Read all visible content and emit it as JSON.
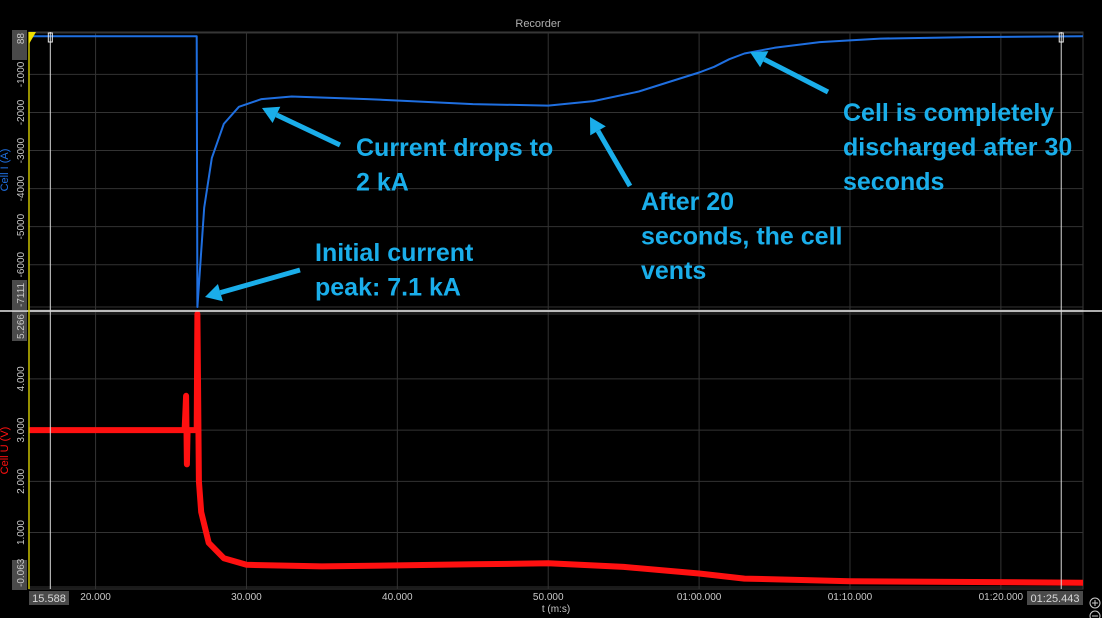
{
  "window_title": "Recorder",
  "chart_data": [
    {
      "type": "line",
      "ylabel": "Cell I (A)",
      "ylim": [
        -7111,
        88
      ],
      "yticks": [
        "88",
        "-1000",
        "-2000",
        "-3000",
        "-4000",
        "-5000",
        "-6000",
        "-7111"
      ],
      "ytick_values": [
        88,
        -1000,
        -2000,
        -3000,
        -4000,
        -5000,
        -6000,
        -7111
      ],
      "color": "#1f6fe0",
      "x": [
        15.588,
        26.7,
        26.75,
        27.2,
        27.7,
        28.5,
        29.5,
        31,
        33,
        38,
        45,
        50,
        53,
        56,
        58,
        60,
        61,
        62,
        63,
        65,
        68,
        72,
        78,
        85.443
      ],
      "y": [
        0,
        0,
        -7111,
        -4500,
        -3200,
        -2300,
        -1850,
        -1650,
        -1580,
        -1650,
        -1780,
        -1820,
        -1700,
        -1450,
        -1200,
        -950,
        -800,
        -600,
        -450,
        -300,
        -150,
        -60,
        -20,
        0
      ]
    },
    {
      "type": "line",
      "ylabel": "Cell U (V)",
      "ylim": [
        -0.063,
        5.266
      ],
      "yticks": [
        "5.266",
        "4.000",
        "3.000",
        "2.000",
        "1.000",
        "-0.063"
      ],
      "ytick_values": [
        5.266,
        4,
        3,
        2,
        1,
        -0.063
      ],
      "color": "#ff1010",
      "x": [
        15.588,
        25.9,
        26.0,
        26.05,
        26.1,
        26.7,
        26.75,
        26.85,
        27.0,
        27.5,
        28.5,
        30,
        35,
        45,
        50,
        55,
        60,
        63,
        70,
        85.443
      ],
      "y": [
        3.0,
        3.0,
        3.67,
        2.33,
        3.0,
        3.0,
        5.266,
        2.0,
        1.4,
        0.8,
        0.5,
        0.37,
        0.34,
        0.38,
        0.4,
        0.33,
        0.2,
        0.1,
        0.05,
        0.02
      ]
    }
  ],
  "x_axis": {
    "label": "t (m:s)",
    "xlim": [
      15.588,
      85.443
    ],
    "start_label": "15.588",
    "end_label": "01:25.443",
    "ticks": [
      "20.000",
      "30.000",
      "40.000",
      "50.000",
      "01:00.000",
      "01:10.000",
      "01:20.000"
    ],
    "tick_values": [
      20,
      30,
      40,
      50,
      60,
      70,
      80
    ]
  },
  "cursors": [
    17.0,
    84.0
  ],
  "annotations": [
    {
      "lines": [
        "Current drops to",
        "2 kA"
      ]
    },
    {
      "lines": [
        "Initial current",
        "peak: 7.1 kA"
      ]
    },
    {
      "lines": [
        "After 20",
        "seconds, the cell",
        "vents"
      ]
    },
    {
      "lines": [
        "Cell is completely",
        "discharged after 30",
        "seconds"
      ]
    }
  ],
  "annotation_color": "#1aaeea",
  "zoom_in_icon": "plus-circle-icon",
  "zoom_out_icon": "minus-circle-icon"
}
